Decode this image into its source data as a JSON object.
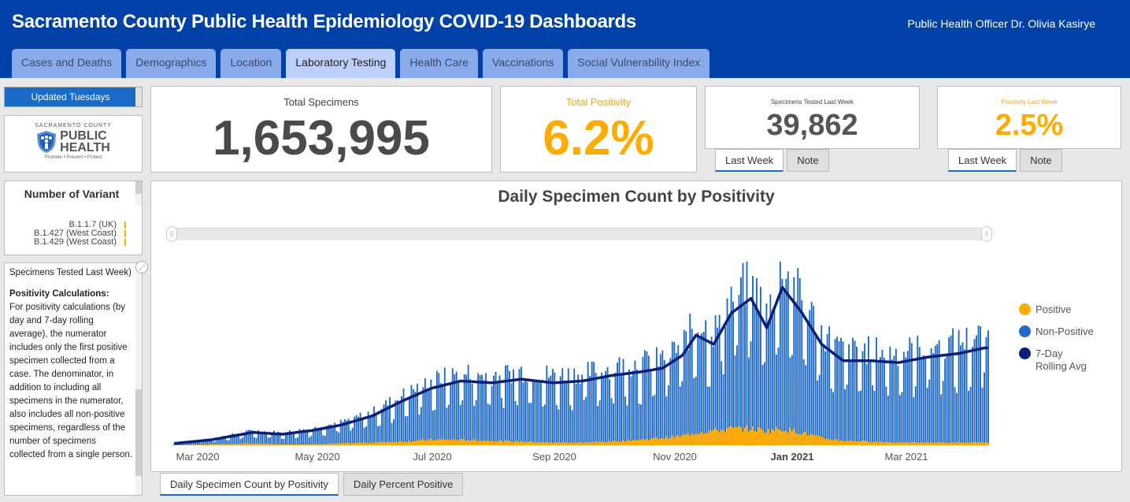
{
  "header": {
    "title": "Sacramento County Public Health Epidemiology COVID-19 Dashboards",
    "officer": "Public Health Officer Dr. Olivia Kasirye"
  },
  "tabs": [
    {
      "label": "Cases and Deaths",
      "active": false
    },
    {
      "label": "Demographics",
      "active": false
    },
    {
      "label": "Location",
      "active": false
    },
    {
      "label": "Laboratory Testing",
      "active": true
    },
    {
      "label": "Health Care",
      "active": false
    },
    {
      "label": "Vaccinations",
      "active": false
    },
    {
      "label": "Social Vulnerability Index",
      "active": false
    }
  ],
  "sidebar": {
    "updated": "Updated Tuesdays",
    "logo": {
      "county": "SACRAMENTO COUNTY",
      "line1": "PUBLIC",
      "line2": "HEALTH",
      "tagline": "Promote • Prevent • Protect"
    },
    "variants": {
      "title": "Number of Variant",
      "items": [
        "B.1.1.7 (UK)",
        "B.1.427 (West Coast)",
        "B.1.429 (West Coast)"
      ]
    },
    "note": {
      "lead": "Specimens Tested Last Week)",
      "heading": "Positivity Calculations:",
      "body": "For positivity calculations (by day and 7-day rolling average), the numerator includes only the first positive specimen collected from a case. The denominator, in addition to including all specimens in the numerator, also includes all non-positive specimens, regardless of the number of specimens collected from a single person."
    }
  },
  "stats": {
    "total_specimens": {
      "label": "Total Specimens",
      "value": "1,653,995"
    },
    "total_positivity": {
      "label": "Total Positivity",
      "value": "6.2%"
    },
    "last_week_specimens": {
      "label": "Specimens Tested Last Week",
      "value": "39,862",
      "tabs": [
        "Last Week",
        "Note"
      ]
    },
    "last_week_positivity": {
      "label": "Positivity Last Week",
      "value": "2.5%",
      "tabs": [
        "Last Week",
        "Note"
      ]
    }
  },
  "colors": {
    "positive": "#ffab00",
    "non_positive": "#1f6ac7",
    "rolling": "#0b1f7a",
    "accent_orange": "#f5a800",
    "header_blue": "#0041a8"
  },
  "chart_tabs": [
    "Daily Specimen Count by Positivity",
    "Daily Percent Positive"
  ],
  "chart_data": {
    "type": "bar",
    "title": "Daily Specimen Count by Positivity",
    "stacked": true,
    "xlabel": "",
    "ylabel": "",
    "x_tick_labels": [
      "Mar 2020",
      "May 2020",
      "Jul 2020",
      "Sep 2020",
      "Nov 2020",
      "Jan 2021",
      "Mar 2021"
    ],
    "x_tick_bold": "Jan 2021",
    "x_range": [
      "2020-03-01",
      "2021-04-20"
    ],
    "y_axis_shown": false,
    "value_units": "relative (0-100 = chart height, no y-axis shown)",
    "legend": [
      "Positive",
      "Non-Positive",
      "7-Day Rolling Avg"
    ],
    "legend_position": "right",
    "series_anchors": {
      "note": "Approximate weekly anchors read visually; values relative to peak (100)",
      "dates": [
        "2020-03-01",
        "2020-03-20",
        "2020-04-10",
        "2020-04-25",
        "2020-05-10",
        "2020-05-25",
        "2020-06-10",
        "2020-06-25",
        "2020-07-10",
        "2020-07-25",
        "2020-08-10",
        "2020-08-25",
        "2020-09-10",
        "2020-09-25",
        "2020-10-10",
        "2020-10-25",
        "2020-11-05",
        "2020-11-15",
        "2020-11-22",
        "2020-12-01",
        "2020-12-10",
        "2020-12-20",
        "2020-12-28",
        "2021-01-05",
        "2021-01-15",
        "2021-01-25",
        "2021-02-05",
        "2021-02-20",
        "2021-03-05",
        "2021-03-20",
        "2021-04-05",
        "2021-04-18"
      ],
      "rolling_avg": [
        1,
        3,
        7,
        6,
        8,
        11,
        16,
        24,
        31,
        35,
        34,
        36,
        34,
        35,
        38,
        40,
        42,
        49,
        60,
        55,
        72,
        80,
        64,
        86,
        72,
        55,
        46,
        46,
        45,
        48,
        50,
        53
      ],
      "positive": [
        0,
        0.5,
        1,
        0.5,
        0.5,
        1,
        1.5,
        2,
        3,
        3,
        2.5,
        2,
        1.5,
        1.5,
        2,
        3,
        4,
        5,
        7,
        8,
        9,
        9,
        8,
        9,
        7,
        4,
        2.5,
        2,
        1.5,
        1.5,
        1.5,
        1.5
      ]
    }
  }
}
